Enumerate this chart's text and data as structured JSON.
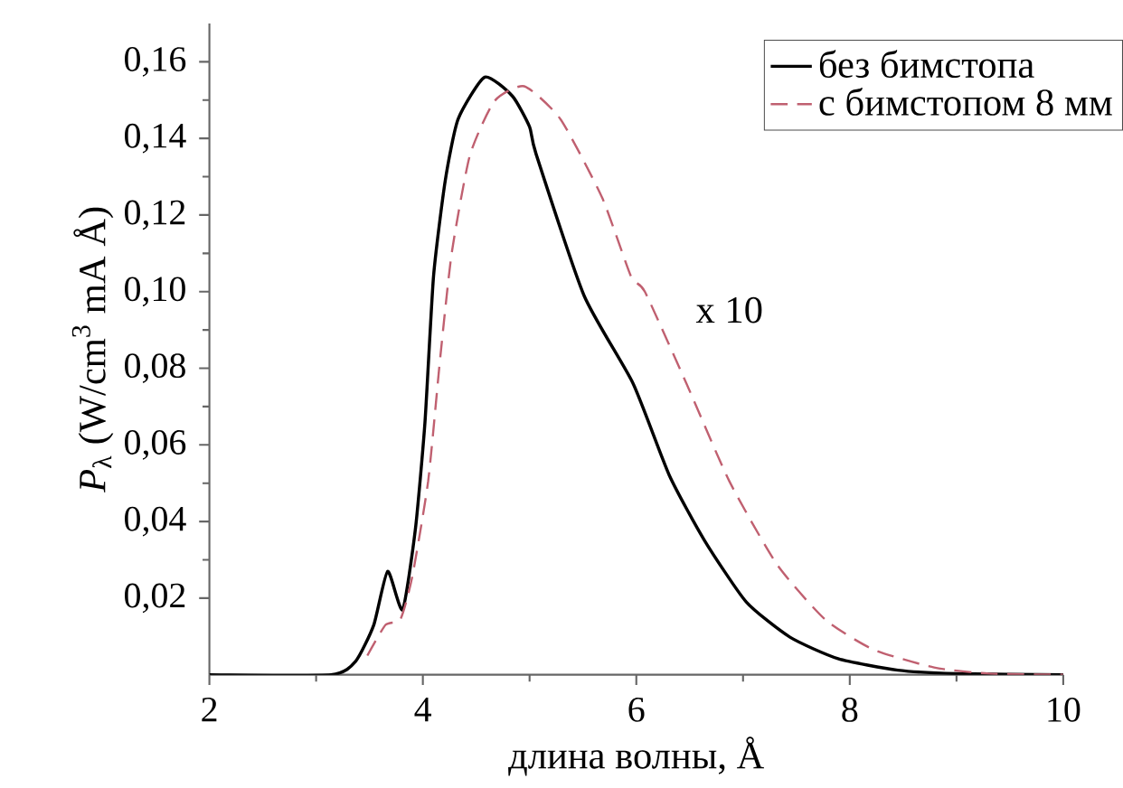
{
  "chart_data": {
    "type": "line",
    "xlabel": "длина волны, Å",
    "ylabel": "*P*$_{λ}$ (W/cm$^{3}$ mA Å)",
    "xlim": [
      2,
      10
    ],
    "ylim": [
      0,
      0.17
    ],
    "xticks": [
      2,
      4,
      6,
      8,
      10
    ],
    "yticks": [
      {
        "value": 0.02,
        "label": "0,02"
      },
      {
        "value": 0.04,
        "label": "0,04"
      },
      {
        "value": 0.06,
        "label": "0,06"
      },
      {
        "value": 0.08,
        "label": "0,08"
      },
      {
        "value": 0.1,
        "label": "0,10"
      },
      {
        "value": 0.12,
        "label": "0,12"
      },
      {
        "value": 0.14,
        "label": "0,14"
      },
      {
        "value": 0.16,
        "label": "0,16"
      }
    ],
    "legend": "top right",
    "marker": "none",
    "annotations": [
      "x 10"
    ],
    "series": [
      {
        "name": "без бимстопа",
        "color": "#000000",
        "line_style": "solid",
        "x": [
          2,
          3.14,
          3.37,
          3.54,
          3.67,
          3.81,
          3.93,
          4.02,
          4.1,
          4.21,
          4.33,
          4.58,
          4.84,
          5.0,
          5.06,
          5.51,
          5.97,
          6.31,
          6.64,
          7.03,
          7.44,
          7.89,
          8.45,
          9.0,
          10
        ],
        "values": [
          0,
          0,
          0.0035,
          0.013,
          0.027,
          0.017,
          0.038,
          0.066,
          0.104,
          0.129,
          0.145,
          0.156,
          0.151,
          0.143,
          0.136,
          0.099,
          0.076,
          0.052,
          0.035,
          0.019,
          0.0098,
          0.0042,
          0.0012,
          0.0003,
          0
        ]
      },
      {
        "name": "с бимстопом 8 мм",
        "color": "#c06070",
        "line_style": "dashed",
        "x": [
          3.48,
          3.65,
          3.79,
          3.9,
          4.05,
          4.16,
          4.27,
          4.44,
          4.67,
          4.95,
          5.29,
          5.68,
          5.95,
          6.08,
          6.47,
          6.87,
          7.32,
          7.77,
          8.22,
          8.79,
          9.3,
          10
        ],
        "values": [
          0.005,
          0.013,
          0.0145,
          0.0255,
          0.0506,
          0.082,
          0.11,
          0.1355,
          0.1497,
          0.1536,
          0.145,
          0.1245,
          0.104,
          0.1,
          0.076,
          0.0506,
          0.0287,
          0.0144,
          0.0066,
          0.0019,
          0.0003,
          0
        ]
      }
    ]
  }
}
